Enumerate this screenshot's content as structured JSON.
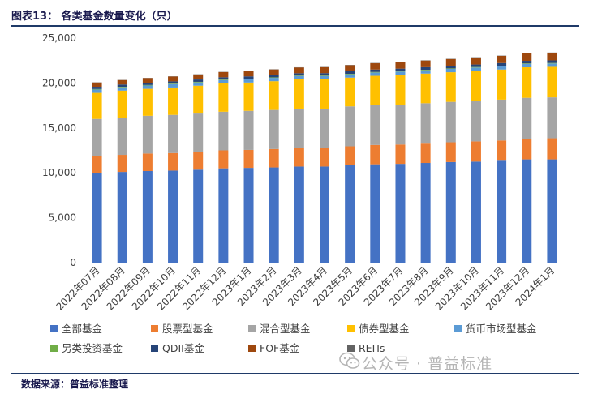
{
  "title": "图表13：  各类基金数量变化（只）",
  "source": "数据来源：普益标准整理",
  "watermark": "公众号 · 普益标准",
  "chart_data": {
    "type": "bar",
    "stacked": true,
    "ylim": [
      0,
      25000
    ],
    "yticks": [
      "0",
      "5,000",
      "10,000",
      "15,000",
      "20,000",
      "25,000"
    ],
    "ytick_values": [
      0,
      5000,
      10000,
      15000,
      20000,
      25000
    ],
    "grid": false,
    "legend_position": "bottom",
    "categories": [
      "2022年07月",
      "2022年08月",
      "2022年09月",
      "2022年10月",
      "2022年11月",
      "2022年12月",
      "2023年1月",
      "2023年2月",
      "2023年3月",
      "2023年4月",
      "2023年5月",
      "2023年6月",
      "2023年7月",
      "2023年8月",
      "2023年9月",
      "2023年10月",
      "2023年11月",
      "2023年12月",
      "2024年1月"
    ],
    "series": [
      {
        "name": "全部基金",
        "color": "#4472c4",
        "values": [
          10000,
          10100,
          10200,
          10250,
          10350,
          10500,
          10550,
          10600,
          10700,
          10700,
          10850,
          10950,
          11000,
          11100,
          11200,
          11250,
          11350,
          11500,
          11500
        ]
      },
      {
        "name": "股票型基金",
        "color": "#ed7d31",
        "values": [
          1900,
          1900,
          1950,
          1950,
          1950,
          2000,
          2000,
          2050,
          2050,
          2050,
          2100,
          2150,
          2150,
          2150,
          2200,
          2250,
          2250,
          2300,
          2350
        ]
      },
      {
        "name": "混合型基金",
        "color": "#a5a5a5",
        "values": [
          4100,
          4150,
          4200,
          4250,
          4300,
          4300,
          4350,
          4350,
          4400,
          4400,
          4450,
          4450,
          4450,
          4500,
          4500,
          4500,
          4550,
          4550,
          4550
        ]
      },
      {
        "name": "债券型基金",
        "color": "#ffc000",
        "values": [
          2900,
          3000,
          3000,
          3050,
          3100,
          3150,
          3150,
          3200,
          3250,
          3250,
          3200,
          3250,
          3300,
          3300,
          3300,
          3350,
          3350,
          3400,
          3400
        ]
      },
      {
        "name": "货币市场型基金",
        "color": "#5b9bd5",
        "values": [
          370,
          370,
          370,
          370,
          370,
          370,
          370,
          370,
          370,
          370,
          370,
          370,
          370,
          370,
          370,
          370,
          370,
          370,
          370
        ]
      },
      {
        "name": "另类投资基金",
        "color": "#70ad47",
        "values": [
          60,
          60,
          60,
          60,
          60,
          60,
          60,
          60,
          60,
          60,
          60,
          60,
          60,
          60,
          60,
          60,
          60,
          60,
          60
        ]
      },
      {
        "name": "QDII基金",
        "color": "#264478",
        "values": [
          250,
          250,
          250,
          250,
          260,
          260,
          260,
          260,
          260,
          270,
          270,
          270,
          270,
          280,
          280,
          280,
          290,
          290,
          290
        ]
      },
      {
        "name": "FOF基金",
        "color": "#9e480e",
        "values": [
          480,
          500,
          520,
          540,
          560,
          580,
          600,
          620,
          640,
          660,
          680,
          700,
          720,
          740,
          760,
          780,
          800,
          820,
          840
        ]
      },
      {
        "name": "REITs",
        "color": "#636363",
        "values": [
          20,
          20,
          20,
          25,
          25,
          25,
          25,
          25,
          25,
          30,
          30,
          30,
          30,
          30,
          30,
          30,
          30,
          30,
          30
        ]
      }
    ]
  }
}
